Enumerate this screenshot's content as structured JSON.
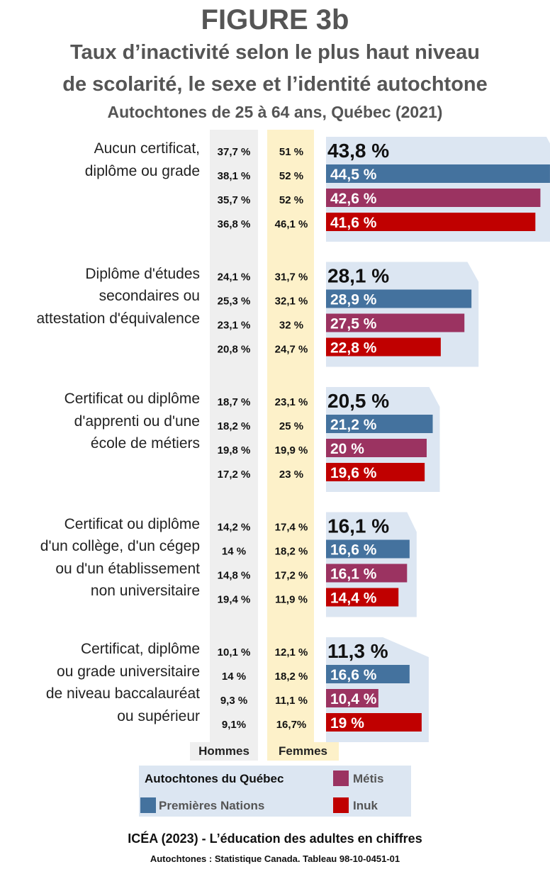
{
  "header": {
    "title": "FIGURE 3b",
    "subtitle_line1": "Taux d’inactivité selon le plus haut niveau",
    "subtitle_line2": "de scolarité, le sexe et l’identité autochtone",
    "subtitle_line3": "Autochtones de 25 à 64 ans, Québec (2021)"
  },
  "columns": {
    "hommes": "Hommes",
    "femmes": "Femmes"
  },
  "legend": {
    "autochtones": "Autochtones du Québec",
    "premieres_nations": "Premières Nations",
    "metis": "Métis",
    "inuk": "Inuk"
  },
  "source": {
    "line1": "ICÉA (2023) - L’éducation des adultes en chiffres",
    "line2": "Autochtones : Statistique Canada. Tableau 98-10-0451-01"
  },
  "colors": {
    "autochtones": "#dce6f2",
    "premieres_nations": "#44729e",
    "metis": "#9b3361",
    "inuk": "#c00000",
    "hommes_col": "#efefef",
    "femmes_col": "#fdf1c9"
  },
  "chart_data": {
    "type": "bar",
    "orientation": "horizontal",
    "series_names": [
      "Autochtones du Québec",
      "Premières Nations",
      "Métis",
      "Inuk"
    ],
    "groups": [
      {
        "label_lines": [
          "Aucun certificat,",
          "diplôme ou grade"
        ],
        "total": 43.8,
        "total_label": "43,8 %",
        "values": [
          44.5,
          42.6,
          41.6
        ],
        "value_labels": [
          "44,5 %",
          "42,6 %",
          "41,6 %"
        ],
        "hommes": [
          "37,7 %",
          "38,1 %",
          "35,7 %",
          "36,8 %"
        ],
        "femmes": [
          "51 %",
          "52 %",
          "52 %",
          "46,1 %"
        ]
      },
      {
        "label_lines": [
          "Diplôme d'études",
          "secondaires ou",
          "attestation d'équivalence"
        ],
        "total": 28.1,
        "total_label": "28,1 %",
        "values": [
          28.9,
          27.5,
          22.8
        ],
        "value_labels": [
          "28,9 %",
          "27,5 %",
          "22,8 %"
        ],
        "hommes": [
          "24,1 %",
          "25,3 %",
          "23,1 %",
          "20,8 %"
        ],
        "femmes": [
          "31,7 %",
          "32,1 %",
          "32 %",
          "24,7 %"
        ]
      },
      {
        "label_lines": [
          "Certificat ou diplôme",
          "d'apprenti ou d'une",
          "école de métiers"
        ],
        "total": 20.5,
        "total_label": "20,5 %",
        "values": [
          21.2,
          20,
          19.6
        ],
        "value_labels": [
          "21,2 %",
          "20 %",
          "19,6 %"
        ],
        "hommes": [
          "18,7 %",
          "18,2 %",
          "19,8 %",
          "17,2 %"
        ],
        "femmes": [
          "23,1 %",
          "25 %",
          "19,9 %",
          "23 %"
        ]
      },
      {
        "label_lines": [
          "Certificat ou diplôme",
          "d'un collège, d'un cégep",
          "ou d'un établissement",
          "non universitaire"
        ],
        "total": 16.1,
        "total_label": "16,1 %",
        "values": [
          16.6,
          16.1,
          14.4
        ],
        "value_labels": [
          "16,6 %",
          "16,1 %",
          "14,4 %"
        ],
        "hommes": [
          "14,2 %",
          "14 %",
          "14,8 %",
          "19,4 %"
        ],
        "femmes": [
          "17,4 %",
          "18,2 %",
          "17,2 %",
          "11,9 %"
        ]
      },
      {
        "label_lines": [
          "Certificat, diplôme",
          "ou grade universitaire",
          "de niveau baccalauréat",
          "ou supérieur"
        ],
        "total": 11.3,
        "total_label": "11,3 %",
        "values": [
          16.6,
          10.4,
          19
        ],
        "value_labels": [
          "16,6 %",
          "10,4 %",
          "19 %"
        ],
        "hommes": [
          "10,1 %",
          "14 %",
          "9,3 %",
          "9,1%"
        ],
        "femmes": [
          "12,1 %",
          "18,2 %",
          "11,1 %",
          "16,7%"
        ]
      }
    ]
  }
}
